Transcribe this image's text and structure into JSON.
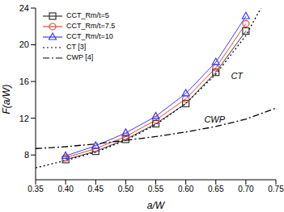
{
  "chart_data": {
    "type": "line",
    "x_label": "a/W",
    "y_label": "F(a/W)",
    "xlim": [
      0.35,
      0.75
    ],
    "xticks": [
      {
        "value": 0.35,
        "label": "0.35"
      },
      {
        "value": 0.4,
        "label": "0.40"
      },
      {
        "value": 0.45,
        "label": "0.45"
      },
      {
        "value": 0.5,
        "label": "0.50"
      },
      {
        "value": 0.55,
        "label": "0.55"
      },
      {
        "value": 0.6,
        "label": "0.60"
      },
      {
        "value": 0.65,
        "label": "0.65"
      },
      {
        "value": 0.7,
        "label": "0.70"
      },
      {
        "value": 0.75,
        "label": "0.75"
      }
    ],
    "ylim": [
      5.3,
      24
    ],
    "yticks": [
      8,
      12,
      16,
      20,
      24
    ],
    "legend": "upper left",
    "series": [
      {
        "name": "CCT_Rm/t=5",
        "color": "#333333",
        "marker": "square",
        "line_style": "solid",
        "x": [
          0.4,
          0.45,
          0.5,
          0.55,
          0.6,
          0.65,
          0.7
        ],
        "values": [
          7.5,
          8.4,
          9.7,
          11.4,
          13.6,
          17.0,
          21.5
        ]
      },
      {
        "name": "CCT_Rm/t=7.5",
        "color": "#e8463c",
        "marker": "circle",
        "line_style": "solid",
        "x": [
          0.4,
          0.45,
          0.5,
          0.55,
          0.6,
          0.65,
          0.7
        ],
        "values": [
          7.7,
          8.7,
          10.0,
          11.8,
          14.1,
          17.5,
          22.3
        ]
      },
      {
        "name": "CCT_Rm/t=10",
        "color": "#3b3bff",
        "marker": "triangle",
        "line_style": "solid",
        "x": [
          0.4,
          0.45,
          0.5,
          0.55,
          0.6,
          0.65,
          0.7
        ],
        "values": [
          7.9,
          9.0,
          10.4,
          12.2,
          14.7,
          18.1,
          23.1
        ]
      },
      {
        "name": "CT [3]",
        "color": "#000000",
        "marker": "none",
        "line_style": "dotted",
        "x": [
          0.35,
          0.4,
          0.45,
          0.5,
          0.55,
          0.6,
          0.65,
          0.7,
          0.725
        ],
        "values": [
          6.6,
          7.4,
          8.3,
          9.6,
          11.3,
          13.6,
          16.8,
          21.0,
          24.0
        ]
      },
      {
        "name": "CWP [4]",
        "color": "#000000",
        "marker": "none",
        "line_style": "dashdot",
        "x": [
          0.35,
          0.4,
          0.45,
          0.5,
          0.55,
          0.6,
          0.65,
          0.7,
          0.75
        ],
        "values": [
          8.7,
          8.9,
          9.2,
          9.6,
          10.0,
          10.5,
          11.1,
          11.9,
          13.1
        ]
      }
    ],
    "annotations": [
      {
        "text": "CT",
        "x": 0.685,
        "y": 16.6
      },
      {
        "text": "CWP",
        "x": 0.648,
        "y": 11.9
      }
    ]
  }
}
